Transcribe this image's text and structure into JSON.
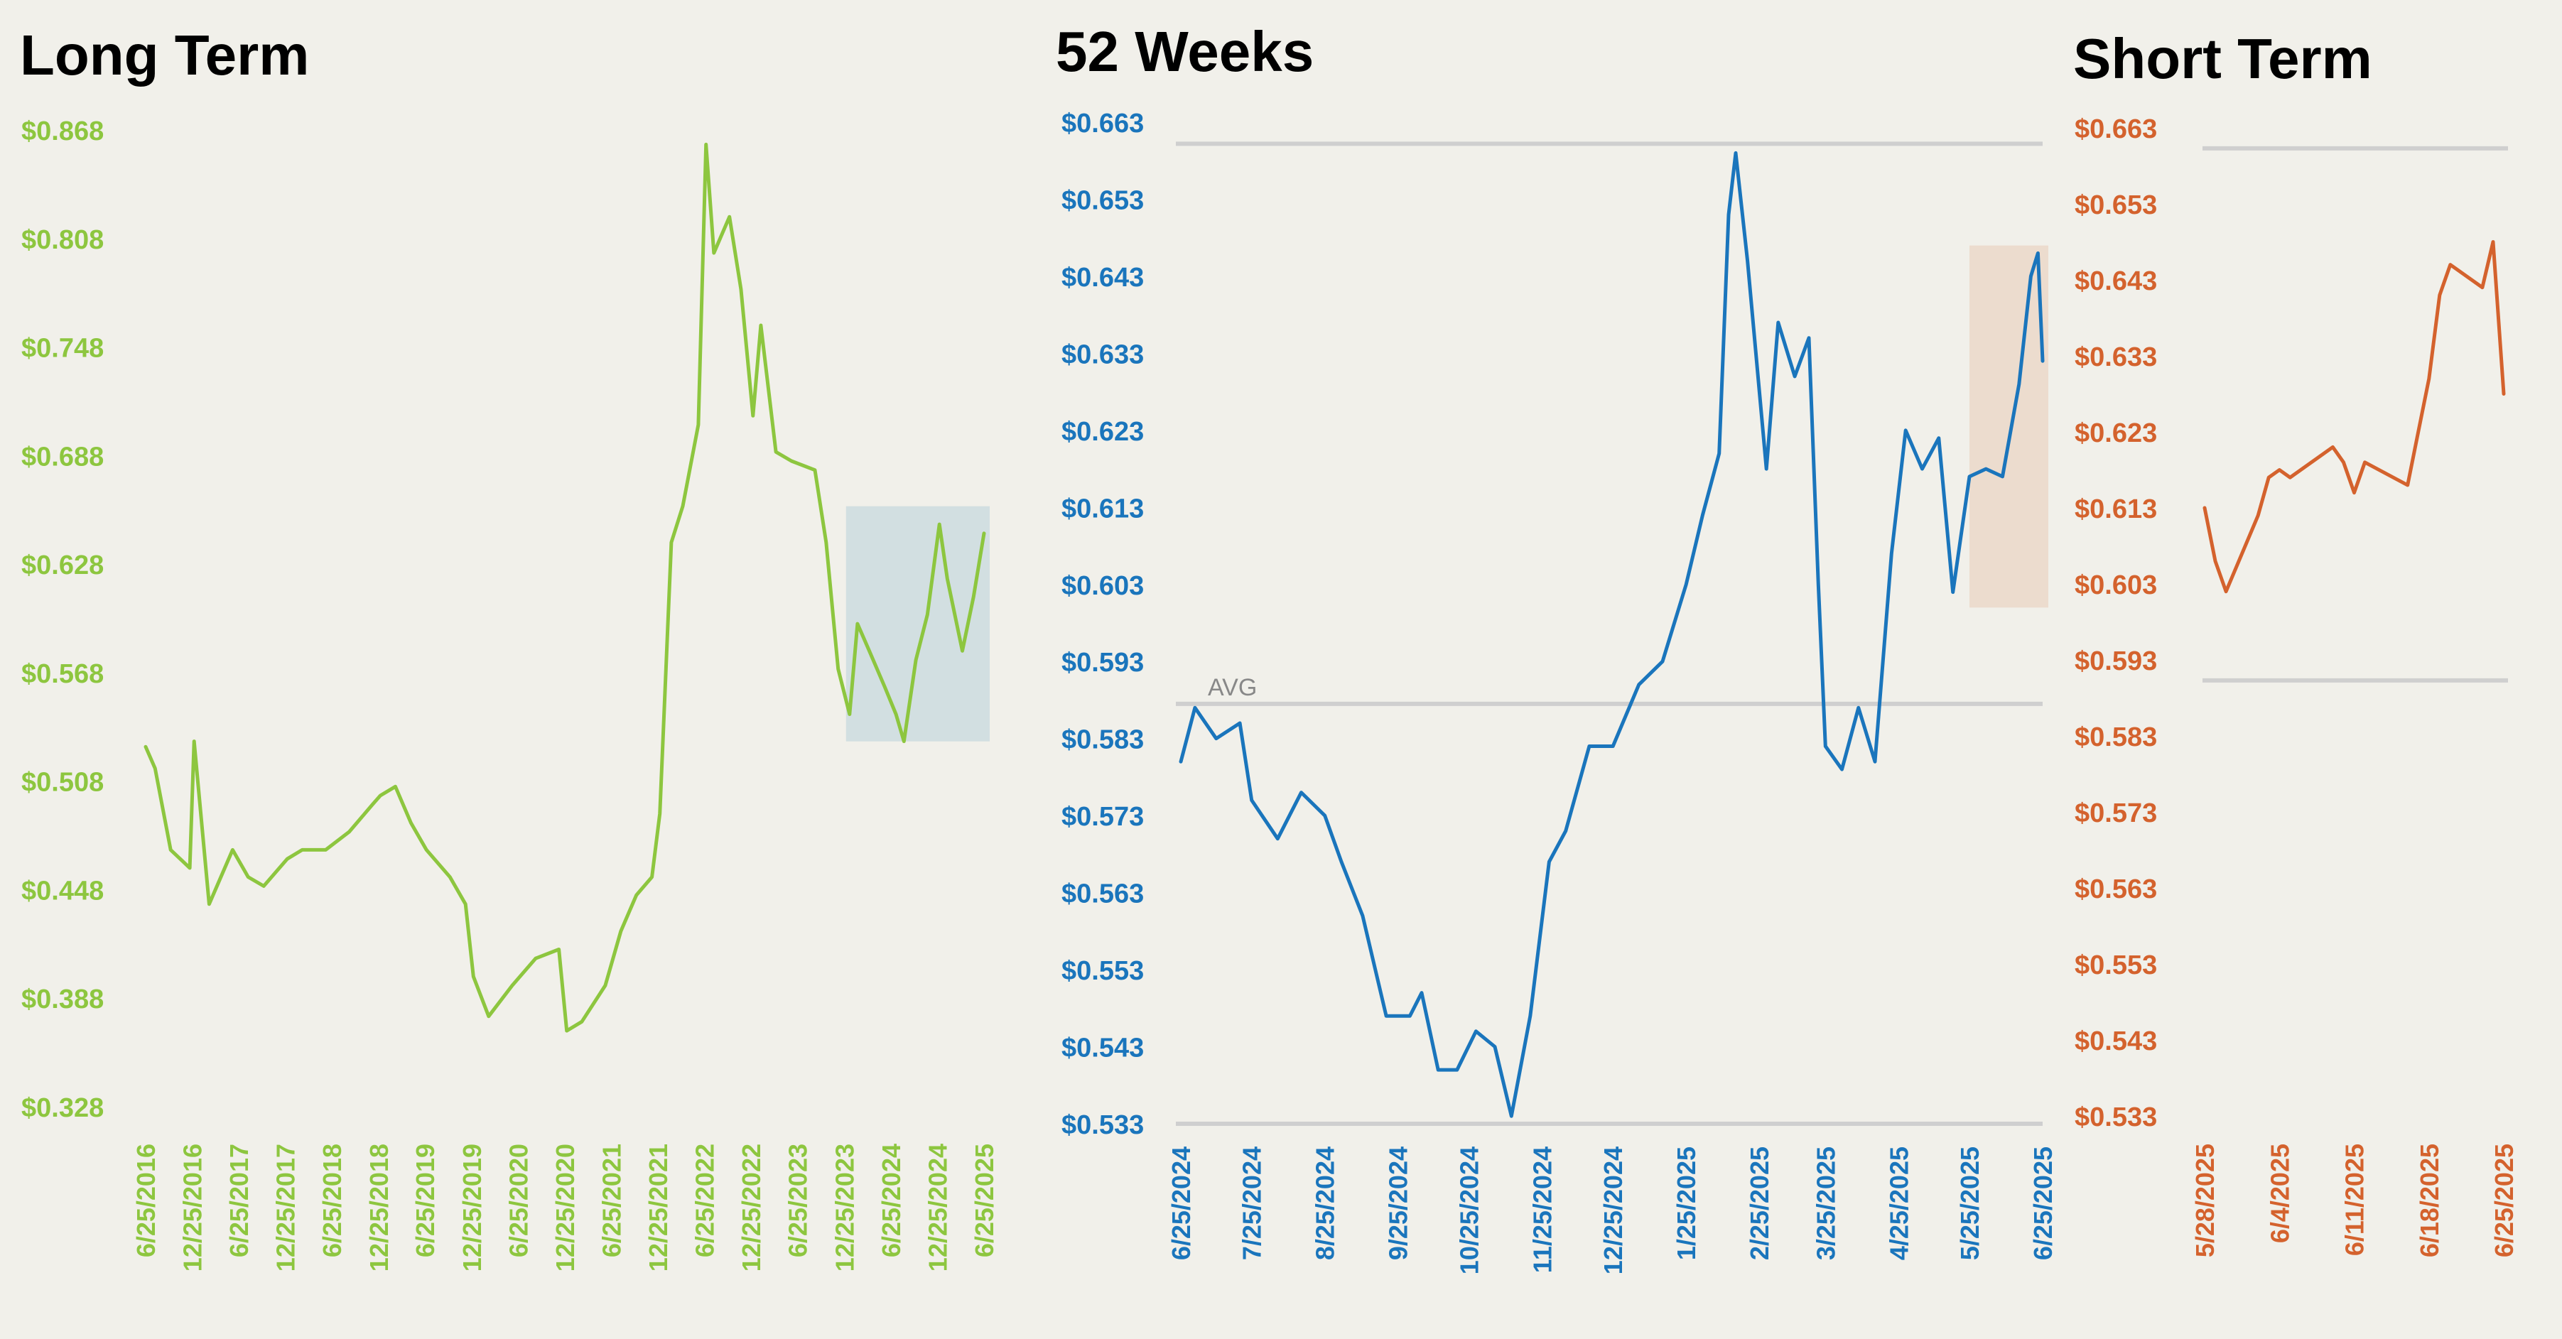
{
  "colors": {
    "background": "#f1f0ea",
    "long_term": "#8dc63f",
    "weeks_52": "#1a75bc",
    "short_term": "#d4622d",
    "gridline": "#cfcfcf",
    "highlight_long": "#c7d9de",
    "highlight_52": "#ead5c4"
  },
  "chart_data": [
    {
      "type": "line",
      "title": "Long Term",
      "ylim": [
        0.328,
        0.868
      ],
      "y_ticks": [
        "$0.868",
        "$0.808",
        "$0.748",
        "$0.688",
        "$0.628",
        "$0.568",
        "$0.508",
        "$0.448",
        "$0.388",
        "$0.328"
      ],
      "x_ticks": [
        "6/25/2016",
        "12/25/2016",
        "6/25/2017",
        "12/25/2017",
        "6/25/2018",
        "12/25/2018",
        "6/25/2019",
        "12/25/2019",
        "6/25/2020",
        "12/25/2020",
        "6/25/2021",
        "12/25/2021",
        "6/25/2022",
        "12/25/2022",
        "6/25/2023",
        "12/25/2023",
        "6/25/2024",
        "12/25/2024",
        "6/25/2025"
      ],
      "x": [
        "2016-06-25",
        "2016-08-01",
        "2016-10-01",
        "2016-12-15",
        "2017-01-01",
        "2017-03-01",
        "2017-06-01",
        "2017-08-01",
        "2017-10-01",
        "2018-01-01",
        "2018-03-01",
        "2018-06-01",
        "2018-09-01",
        "2018-12-01",
        "2019-01-01",
        "2019-03-01",
        "2019-05-01",
        "2019-07-01",
        "2019-10-01",
        "2019-12-01",
        "2020-01-01",
        "2020-03-01",
        "2020-06-01",
        "2020-09-01",
        "2020-12-01",
        "2021-01-01",
        "2021-03-01",
        "2021-06-01",
        "2021-08-01",
        "2021-10-01",
        "2021-12-01",
        "2022-01-01",
        "2022-02-15",
        "2022-04-01",
        "2022-06-01",
        "2022-07-01",
        "2022-08-01",
        "2022-10-01",
        "2022-11-15",
        "2023-01-01",
        "2023-02-01",
        "2023-04-01",
        "2023-06-01",
        "2023-09-01",
        "2023-10-15",
        "2023-12-01",
        "2024-01-15",
        "2024-02-15",
        "2024-04-01",
        "2024-06-01",
        "2024-07-15",
        "2024-08-15",
        "2024-10-01",
        "2024-11-15",
        "2025-01-01",
        "2025-02-01",
        "2025-04-01",
        "2025-05-15",
        "2025-06-25"
      ],
      "series": [
        {
          "values": [
            0.527,
            0.515,
            0.47,
            0.46,
            0.53,
            0.44,
            0.47,
            0.455,
            0.45,
            0.465,
            0.47,
            0.47,
            0.48,
            0.495,
            0.5,
            0.505,
            0.485,
            0.47,
            0.455,
            0.44,
            0.4,
            0.378,
            0.395,
            0.41,
            0.415,
            0.37,
            0.375,
            0.395,
            0.425,
            0.445,
            0.455,
            0.49,
            0.64,
            0.66,
            0.705,
            0.86,
            0.8,
            0.82,
            0.78,
            0.71,
            0.76,
            0.69,
            0.685,
            0.68,
            0.64,
            0.57,
            0.545,
            0.595,
            0.58,
            0.56,
            0.545,
            0.53,
            0.575,
            0.6,
            0.65,
            0.62,
            0.58,
            0.61,
            0.645
          ]
        }
      ],
      "highlight": {
        "from": "2024-01-01",
        "to": "2025-06-25",
        "y": [
          0.53,
          0.66
        ]
      }
    },
    {
      "type": "line",
      "title": "52 Weeks",
      "ylim": [
        0.533,
        0.663
      ],
      "y_ticks": [
        "$0.663",
        "$0.653",
        "$0.643",
        "$0.633",
        "$0.623",
        "$0.613",
        "$0.603",
        "$0.593",
        "$0.583",
        "$0.573",
        "$0.563",
        "$0.553",
        "$0.543",
        "$0.533"
      ],
      "x_ticks": [
        "6/25/2024",
        "7/25/2024",
        "8/25/2024",
        "9/25/2024",
        "10/25/2024",
        "11/25/2024",
        "12/25/2024",
        "1/25/2025",
        "2/25/2025",
        "3/25/2025",
        "4/25/2025",
        "5/25/2025",
        "6/25/2025"
      ],
      "x": [
        "2024-06-25",
        "2024-07-01",
        "2024-07-10",
        "2024-07-20",
        "2024-07-25",
        "2024-08-05",
        "2024-08-15",
        "2024-08-25",
        "2024-09-01",
        "2024-09-10",
        "2024-09-20",
        "2024-09-30",
        "2024-10-05",
        "2024-10-12",
        "2024-10-20",
        "2024-10-28",
        "2024-11-05",
        "2024-11-12",
        "2024-11-20",
        "2024-11-28",
        "2024-12-05",
        "2024-12-15",
        "2024-12-25",
        "2025-01-05",
        "2025-01-15",
        "2025-01-25",
        "2025-02-01",
        "2025-02-08",
        "2025-02-12",
        "2025-02-15",
        "2025-02-20",
        "2025-02-28",
        "2025-03-05",
        "2025-03-12",
        "2025-03-18",
        "2025-03-22",
        "2025-03-25",
        "2025-04-01",
        "2025-04-08",
        "2025-04-15",
        "2025-04-22",
        "2025-04-28",
        "2025-05-05",
        "2025-05-12",
        "2025-05-18",
        "2025-05-25",
        "2025-06-01",
        "2025-06-08",
        "2025-06-15",
        "2025-06-20",
        "2025-06-23",
        "2025-06-25"
      ],
      "series": [
        {
          "values": [
            0.58,
            0.587,
            0.583,
            0.585,
            0.575,
            0.57,
            0.576,
            0.573,
            0.567,
            0.56,
            0.547,
            0.547,
            0.55,
            0.54,
            0.54,
            0.545,
            0.543,
            0.534,
            0.547,
            0.567,
            0.571,
            0.582,
            0.582,
            0.59,
            0.593,
            0.603,
            0.612,
            0.62,
            0.651,
            0.659,
            0.645,
            0.618,
            0.637,
            0.63,
            0.635,
            0.603,
            0.582,
            0.579,
            0.587,
            0.58,
            0.607,
            0.623,
            0.618,
            0.622,
            0.602,
            0.617,
            0.618,
            0.617,
            0.629,
            0.643,
            0.646,
            0.632
          ]
        }
      ],
      "average": {
        "label": "AVG",
        "value": 0.5875
      },
      "highlight": {
        "from": "2025-05-25",
        "to": "2025-06-25",
        "y": [
          0.6,
          0.647
        ]
      }
    },
    {
      "type": "line",
      "title": "Short Term",
      "ylim": [
        0.533,
        0.663
      ],
      "y_ticks": [
        "$0.663",
        "$0.653",
        "$0.643",
        "$0.633",
        "$0.623",
        "$0.613",
        "$0.603",
        "$0.593",
        "$0.583",
        "$0.573",
        "$0.563",
        "$0.553",
        "$0.543",
        "$0.533"
      ],
      "x_ticks": [
        "5/28/2025",
        "6/4/2025",
        "6/11/2025",
        "6/18/2025",
        "6/25/2025"
      ],
      "x": [
        "2025-05-28",
        "2025-05-29",
        "2025-05-30",
        "2025-06-02",
        "2025-06-03",
        "2025-06-04",
        "2025-06-05",
        "2025-06-09",
        "2025-06-10",
        "2025-06-11",
        "2025-06-12",
        "2025-06-16",
        "2025-06-17",
        "2025-06-18",
        "2025-06-19",
        "2025-06-20",
        "2025-06-23",
        "2025-06-24",
        "2025-06-25"
      ],
      "series": [
        {
          "values": [
            0.613,
            0.606,
            0.602,
            0.612,
            0.617,
            0.618,
            0.617,
            0.621,
            0.619,
            0.615,
            0.619,
            0.616,
            0.623,
            0.63,
            0.641,
            0.645,
            0.642,
            0.648,
            0.628
          ]
        }
      ],
      "gridlines": [
        0.6603,
        0.5903
      ]
    }
  ]
}
